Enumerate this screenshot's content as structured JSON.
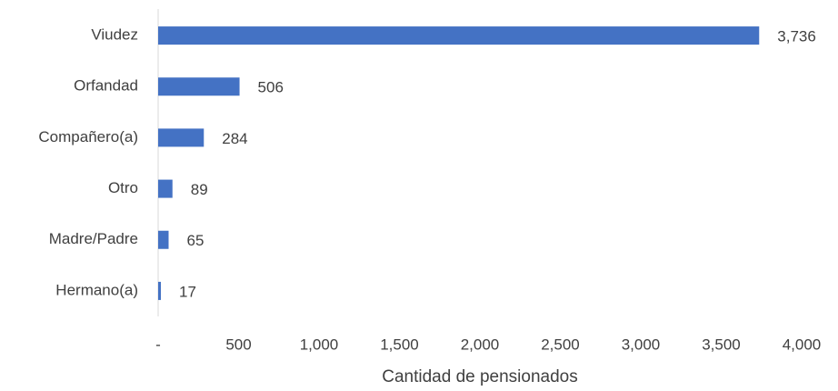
{
  "chart_data": {
    "type": "bar",
    "orientation": "horizontal",
    "categories": [
      "Viudez",
      "Orfandad",
      "Compañero(a)",
      "Otro",
      "Madre/Padre",
      "Hermano(a)"
    ],
    "values": [
      3736,
      506,
      284,
      89,
      65,
      17
    ],
    "value_labels": [
      "3,736",
      "506",
      "284",
      "89",
      "65",
      "17"
    ],
    "color": "#4472c4",
    "xlabel": "Cantidad de pensionados",
    "xlim": [
      0,
      4000
    ],
    "xticks": [
      {
        "value": 0,
        "label": "-"
      },
      500,
      {
        "value": 1000,
        "label": "1,000"
      },
      {
        "value": 1500,
        "label": "1,500"
      },
      {
        "value": 2000,
        "label": "2,000"
      },
      {
        "value": 2500,
        "label": "2,500"
      },
      {
        "value": 3000,
        "label": "3,000"
      },
      {
        "value": 3500,
        "label": "3,500"
      },
      {
        "value": 4000,
        "label": "4,000"
      }
    ],
    "grid": false
  }
}
